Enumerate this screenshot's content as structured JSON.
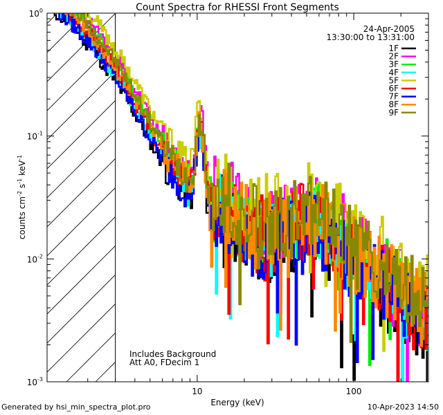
{
  "chart_data": {
    "type": "line",
    "title": "Count Spectra for RHESSI Front Segments",
    "xlabel": "Energy (keV)",
    "ylabel_parts": {
      "base": "counts cm",
      "e1": "-2",
      "mid1": " s",
      "e2": "-1",
      "mid2": " keV",
      "e3": "-1"
    },
    "xscale": "log",
    "yscale": "log",
    "xlim": [
      1.1,
      300
    ],
    "ylim": [
      0.001,
      1
    ],
    "x_ticks": [
      {
        "value": 10,
        "label": "10"
      },
      {
        "value": 100,
        "label": "100"
      }
    ],
    "y_ticks": [
      {
        "value": 0.001,
        "base": "10",
        "exp": "-3"
      },
      {
        "value": 0.01,
        "base": "10",
        "exp": "-2"
      },
      {
        "value": 0.1,
        "base": "10",
        "exp": "-1"
      },
      {
        "value": 1,
        "base": "10",
        "exp": "0"
      }
    ],
    "shaded_region_upper_kev": 3,
    "date": "24-Apr-2005",
    "time_range": "13:30:00 to 13:31:00",
    "notes": [
      "Includes Background",
      "Att A0, FDecim 1"
    ],
    "legend_position": "top-right",
    "series": [
      {
        "name": "1F",
        "color": "#000000",
        "scale": 0.8,
        "seed": 11
      },
      {
        "name": "2F",
        "color": "#ff00ff",
        "scale": 1.25,
        "seed": 23
      },
      {
        "name": "3F",
        "color": "#00ee00",
        "scale": 1.1,
        "seed": 37
      },
      {
        "name": "4F",
        "color": "#00ffff",
        "scale": 0.9,
        "seed": 41
      },
      {
        "name": "5F",
        "color": "#cccc00",
        "scale": 1.45,
        "seed": 53
      },
      {
        "name": "6F",
        "color": "#ff0000",
        "scale": 1.0,
        "seed": 67
      },
      {
        "name": "7F",
        "color": "#0000ff",
        "scale": 0.85,
        "seed": 79
      },
      {
        "name": "8F",
        "color": "#ff8800",
        "scale": 1.05,
        "seed": 83
      },
      {
        "name": "9F",
        "color": "#888800",
        "scale": 1.15,
        "seed": 97
      }
    ]
  },
  "footer": {
    "left": "Generated by hsi_min_spectra_plot.pro",
    "right": "10-Apr-2023 14:50"
  }
}
